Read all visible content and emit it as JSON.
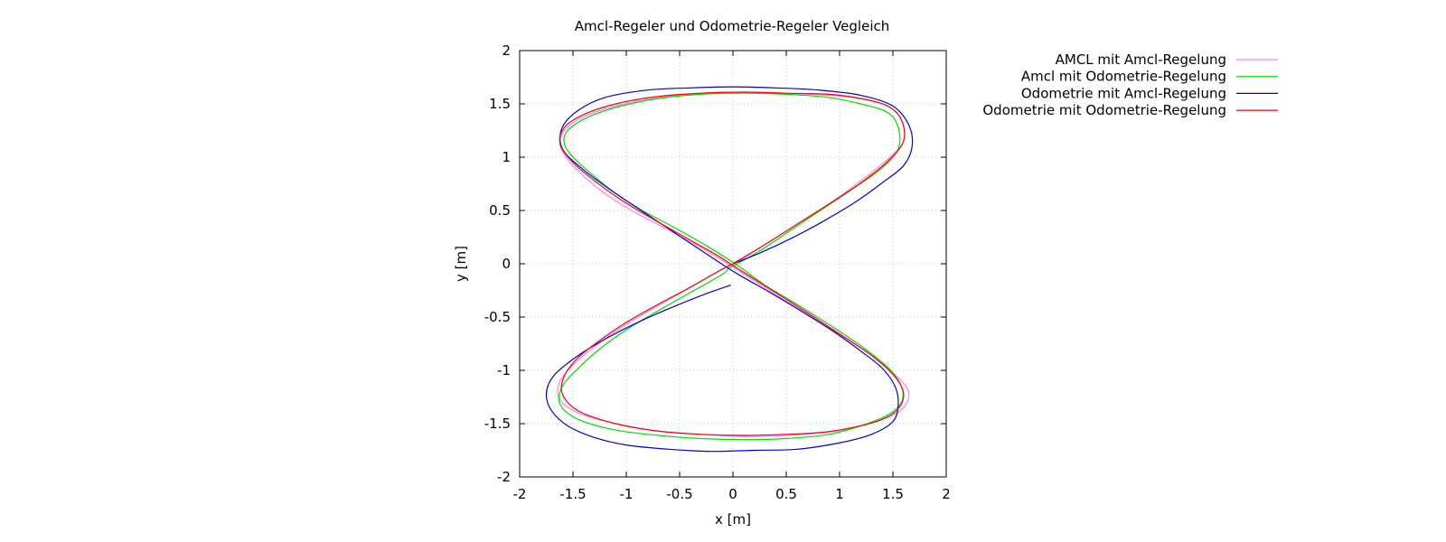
{
  "chart_data": {
    "type": "line",
    "title": "Amcl-Regeler und Odometrie-Regeler Vegleich",
    "xlabel": "x [m]",
    "ylabel": "y [m]",
    "xlim": [
      -2,
      2
    ],
    "ylim": [
      -2,
      2
    ],
    "xticks": [
      -2,
      -1.5,
      -1,
      -0.5,
      0,
      0.5,
      1,
      1.5,
      2
    ],
    "yticks": [
      -2,
      -1.5,
      -1,
      -0.5,
      0,
      0.5,
      1,
      1.5,
      2
    ],
    "xtick_labels": [
      "-2",
      "-1.5",
      "-1",
      "-0.5",
      "0",
      "0.5",
      "1",
      "1.5",
      "2"
    ],
    "ytick_labels": [
      "-2",
      "-1.5",
      "-1",
      "-0.5",
      "0",
      "0.5",
      "1",
      "1.5",
      "2"
    ],
    "grid": true,
    "legend_position": "top-right-outside",
    "series": [
      {
        "name": "AMCL mit Amcl-Regelung",
        "color": "#ff80ff",
        "points": [
          [
            0.05,
            0.02
          ],
          [
            0.3,
            0.18
          ],
          [
            0.6,
            0.37
          ],
          [
            0.9,
            0.56
          ],
          [
            1.2,
            0.78
          ],
          [
            1.45,
            0.98
          ],
          [
            1.6,
            1.15
          ],
          [
            1.58,
            1.35
          ],
          [
            1.45,
            1.48
          ],
          [
            1.2,
            1.55
          ],
          [
            0.9,
            1.58
          ],
          [
            0.5,
            1.6
          ],
          [
            0.1,
            1.61
          ],
          [
            -0.3,
            1.6
          ],
          [
            -0.7,
            1.56
          ],
          [
            -1.1,
            1.48
          ],
          [
            -1.4,
            1.38
          ],
          [
            -1.58,
            1.25
          ],
          [
            -1.62,
            1.12
          ],
          [
            -1.55,
            0.98
          ],
          [
            -1.4,
            0.82
          ],
          [
            -1.2,
            0.66
          ],
          [
            -0.95,
            0.5
          ],
          [
            -0.65,
            0.34
          ],
          [
            -0.35,
            0.18
          ],
          [
            -0.05,
            0.0
          ],
          [
            0.2,
            -0.16
          ],
          [
            0.5,
            -0.35
          ],
          [
            0.8,
            -0.53
          ],
          [
            1.1,
            -0.72
          ],
          [
            1.38,
            -0.92
          ],
          [
            1.58,
            -1.1
          ],
          [
            1.65,
            -1.22
          ],
          [
            1.6,
            -1.35
          ],
          [
            1.45,
            -1.44
          ],
          [
            1.2,
            -1.52
          ],
          [
            0.9,
            -1.58
          ],
          [
            0.5,
            -1.61
          ],
          [
            0.1,
            -1.62
          ],
          [
            -0.3,
            -1.6
          ],
          [
            -0.7,
            -1.57
          ],
          [
            -1.1,
            -1.5
          ],
          [
            -1.45,
            -1.4
          ],
          [
            -1.62,
            -1.28
          ],
          [
            -1.63,
            -1.12
          ],
          [
            -1.5,
            -0.95
          ],
          [
            -1.3,
            -0.78
          ],
          [
            -1.05,
            -0.6
          ],
          [
            -0.75,
            -0.42
          ],
          [
            -0.45,
            -0.25
          ],
          [
            -0.15,
            -0.08
          ],
          [
            0.05,
            0.02
          ]
        ]
      },
      {
        "name": "Amcl mit Odometrie-Regelung",
        "color": "#00e000",
        "points": [
          [
            -0.05,
            -0.05
          ],
          [
            0.25,
            0.12
          ],
          [
            0.55,
            0.32
          ],
          [
            0.85,
            0.52
          ],
          [
            1.15,
            0.72
          ],
          [
            1.4,
            0.9
          ],
          [
            1.55,
            1.08
          ],
          [
            1.55,
            1.28
          ],
          [
            1.45,
            1.42
          ],
          [
            1.2,
            1.5
          ],
          [
            0.9,
            1.56
          ],
          [
            0.5,
            1.59
          ],
          [
            0.1,
            1.6
          ],
          [
            -0.3,
            1.59
          ],
          [
            -0.7,
            1.55
          ],
          [
            -1.05,
            1.48
          ],
          [
            -1.35,
            1.38
          ],
          [
            -1.55,
            1.25
          ],
          [
            -1.58,
            1.12
          ],
          [
            -1.48,
            0.98
          ],
          [
            -1.3,
            0.82
          ],
          [
            -1.1,
            0.66
          ],
          [
            -0.85,
            0.5
          ],
          [
            -0.55,
            0.34
          ],
          [
            -0.25,
            0.17
          ],
          [
            0.05,
            -0.02
          ],
          [
            0.3,
            -0.2
          ],
          [
            0.6,
            -0.38
          ],
          [
            0.9,
            -0.57
          ],
          [
            1.2,
            -0.77
          ],
          [
            1.45,
            -0.97
          ],
          [
            1.58,
            -1.15
          ],
          [
            1.58,
            -1.3
          ],
          [
            1.45,
            -1.42
          ],
          [
            1.2,
            -1.52
          ],
          [
            0.9,
            -1.6
          ],
          [
            0.5,
            -1.64
          ],
          [
            0.1,
            -1.65
          ],
          [
            -0.3,
            -1.64
          ],
          [
            -0.7,
            -1.61
          ],
          [
            -1.1,
            -1.56
          ],
          [
            -1.45,
            -1.46
          ],
          [
            -1.62,
            -1.32
          ],
          [
            -1.6,
            -1.15
          ],
          [
            -1.45,
            -0.98
          ],
          [
            -1.25,
            -0.8
          ],
          [
            -1.0,
            -0.62
          ],
          [
            -0.7,
            -0.44
          ],
          [
            -0.4,
            -0.27
          ],
          [
            -0.1,
            -0.1
          ],
          [
            -0.05,
            -0.05
          ]
        ]
      },
      {
        "name": "Odometrie mit Amcl-Regelung",
        "color": "#0000e0",
        "points": [
          [
            -0.02,
            -0.2
          ],
          [
            -0.25,
            -0.28
          ],
          [
            -0.55,
            -0.4
          ],
          [
            -0.85,
            -0.53
          ],
          [
            -1.15,
            -0.68
          ],
          [
            -1.45,
            -0.86
          ],
          [
            -1.68,
            -1.05
          ],
          [
            -1.75,
            -1.22
          ],
          [
            -1.7,
            -1.38
          ],
          [
            -1.55,
            -1.52
          ],
          [
            -1.3,
            -1.63
          ],
          [
            -1.0,
            -1.7
          ],
          [
            -0.6,
            -1.74
          ],
          [
            -0.2,
            -1.76
          ],
          [
            0.2,
            -1.75
          ],
          [
            0.6,
            -1.74
          ],
          [
            1.0,
            -1.68
          ],
          [
            1.3,
            -1.6
          ],
          [
            1.5,
            -1.48
          ],
          [
            1.55,
            -1.32
          ],
          [
            1.52,
            -1.15
          ],
          [
            1.4,
            -0.98
          ],
          [
            1.2,
            -0.82
          ],
          [
            0.95,
            -0.64
          ],
          [
            0.65,
            -0.45
          ],
          [
            0.35,
            -0.27
          ],
          [
            0.05,
            -0.1
          ],
          [
            -0.2,
            0.06
          ],
          [
            -0.5,
            0.26
          ],
          [
            -0.8,
            0.46
          ],
          [
            -1.1,
            0.66
          ],
          [
            -1.4,
            0.88
          ],
          [
            -1.6,
            1.08
          ],
          [
            -1.6,
            1.28
          ],
          [
            -1.45,
            1.44
          ],
          [
            -1.2,
            1.56
          ],
          [
            -0.8,
            1.63
          ],
          [
            -0.4,
            1.65
          ],
          [
            0.0,
            1.66
          ],
          [
            0.4,
            1.65
          ],
          [
            0.8,
            1.63
          ],
          [
            1.2,
            1.58
          ],
          [
            1.5,
            1.48
          ],
          [
            1.65,
            1.3
          ],
          [
            1.68,
            1.1
          ],
          [
            1.6,
            0.92
          ],
          [
            1.4,
            0.76
          ],
          [
            1.15,
            0.58
          ],
          [
            0.85,
            0.4
          ],
          [
            0.55,
            0.24
          ],
          [
            0.25,
            0.1
          ],
          [
            0.0,
            0.0
          ]
        ]
      },
      {
        "name": "Odometrie mit Odometrie-Regelung",
        "color": "#ff0000",
        "points": [
          [
            0.0,
            0.0
          ],
          [
            0.3,
            0.18
          ],
          [
            0.6,
            0.37
          ],
          [
            0.9,
            0.56
          ],
          [
            1.2,
            0.76
          ],
          [
            1.45,
            0.96
          ],
          [
            1.6,
            1.15
          ],
          [
            1.58,
            1.35
          ],
          [
            1.45,
            1.48
          ],
          [
            1.2,
            1.55
          ],
          [
            0.9,
            1.59
          ],
          [
            0.5,
            1.6
          ],
          [
            0.1,
            1.61
          ],
          [
            -0.3,
            1.6
          ],
          [
            -0.7,
            1.57
          ],
          [
            -1.1,
            1.5
          ],
          [
            -1.4,
            1.4
          ],
          [
            -1.58,
            1.28
          ],
          [
            -1.62,
            1.12
          ],
          [
            -1.5,
            0.95
          ],
          [
            -1.3,
            0.78
          ],
          [
            -1.05,
            0.6
          ],
          [
            -0.75,
            0.42
          ],
          [
            -0.45,
            0.25
          ],
          [
            -0.15,
            0.08
          ],
          [
            0.1,
            -0.08
          ],
          [
            0.4,
            -0.27
          ],
          [
            0.7,
            -0.46
          ],
          [
            1.0,
            -0.66
          ],
          [
            1.3,
            -0.86
          ],
          [
            1.52,
            -1.06
          ],
          [
            1.6,
            -1.22
          ],
          [
            1.55,
            -1.36
          ],
          [
            1.4,
            -1.46
          ],
          [
            1.15,
            -1.53
          ],
          [
            0.85,
            -1.58
          ],
          [
            0.5,
            -1.6
          ],
          [
            0.1,
            -1.61
          ],
          [
            -0.3,
            -1.6
          ],
          [
            -0.7,
            -1.57
          ],
          [
            -1.1,
            -1.5
          ],
          [
            -1.45,
            -1.38
          ],
          [
            -1.6,
            -1.22
          ],
          [
            -1.58,
            -1.05
          ],
          [
            -1.45,
            -0.88
          ],
          [
            -1.25,
            -0.72
          ],
          [
            -1.0,
            -0.55
          ],
          [
            -0.7,
            -0.38
          ],
          [
            -0.4,
            -0.22
          ],
          [
            -0.1,
            -0.05
          ],
          [
            0.0,
            0.0
          ]
        ]
      }
    ]
  }
}
